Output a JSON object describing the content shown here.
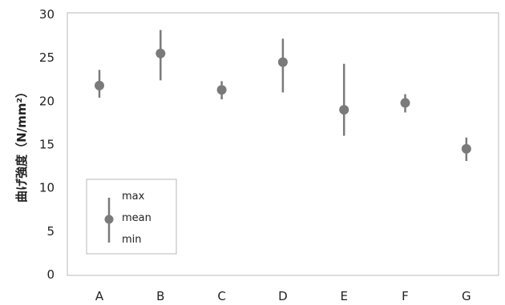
{
  "chart_data": {
    "type": "errorbar-scatter",
    "categories": [
      "A",
      "B",
      "C",
      "D",
      "E",
      "F",
      "G"
    ],
    "mean": [
      21.8,
      25.5,
      21.3,
      24.5,
      19.0,
      19.8,
      14.5
    ],
    "max": [
      23.6,
      28.2,
      22.3,
      27.2,
      24.3,
      20.8,
      15.8
    ],
    "min": [
      20.4,
      22.4,
      20.2,
      21.0,
      16.0,
      18.7,
      13.1
    ],
    "ylabel": "曲げ強度（N/mm²）",
    "ylim": [
      0,
      30
    ],
    "yticks": [
      0,
      5,
      10,
      15,
      20,
      25,
      30
    ],
    "grid": false,
    "legend_position": "bottom-left",
    "legend": {
      "max": "max",
      "mean": "mean",
      "min": "min"
    },
    "colors": {
      "marker": "#7a7a7a",
      "frame": "#b8b8b8",
      "text": "#222222"
    }
  }
}
